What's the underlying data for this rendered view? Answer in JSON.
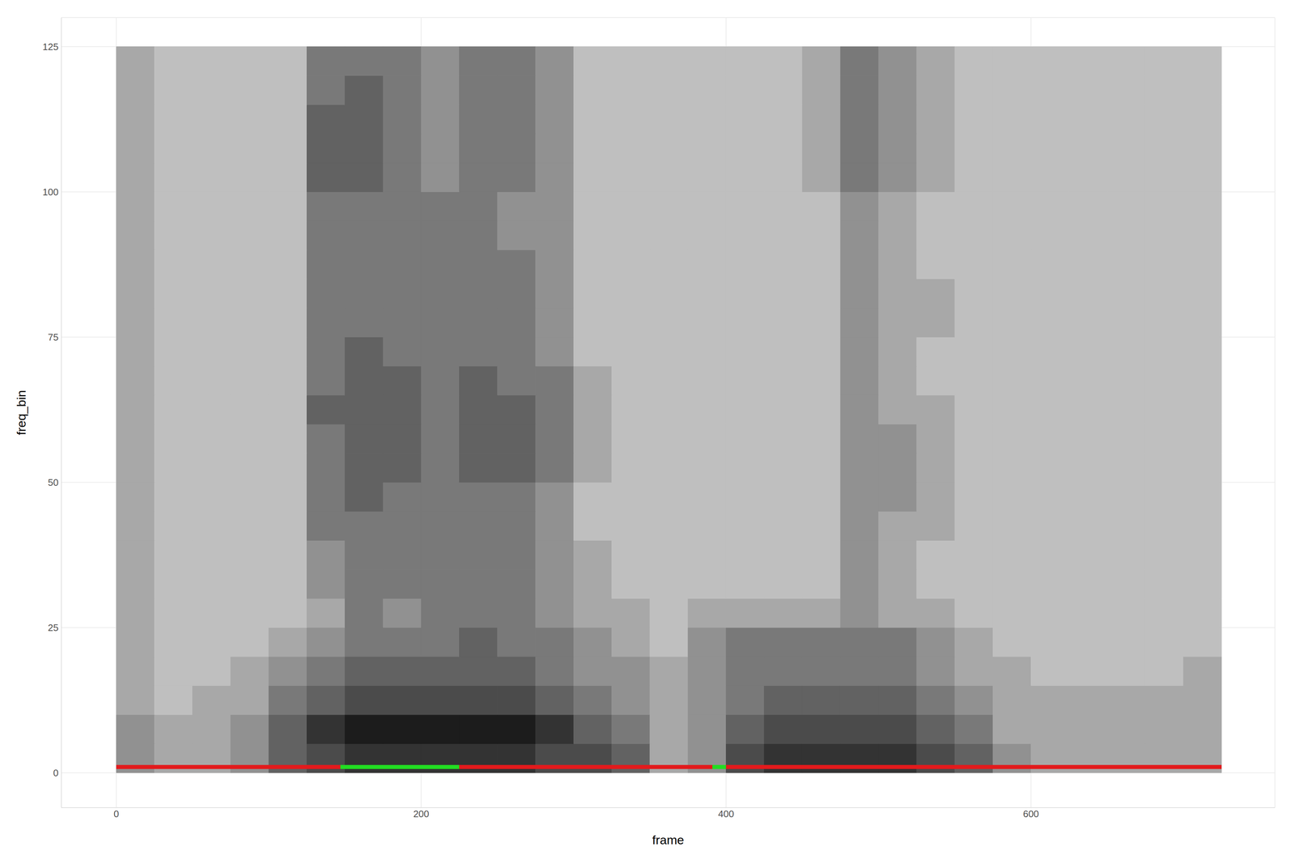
{
  "chart_data": {
    "type": "heatmap",
    "x_label": "frame",
    "y_label": "freq_bin",
    "xlim": [
      -36,
      760
    ],
    "ylim": [
      -6,
      130
    ],
    "xticks": [
      0,
      200,
      400,
      600
    ],
    "yticks": [
      0,
      25,
      50,
      75,
      100,
      125
    ],
    "grid": true,
    "cells": {
      "frame_edges": [
        0,
        25,
        50,
        75,
        100,
        125,
        150,
        175,
        200,
        225,
        250,
        275,
        300,
        325,
        350,
        375,
        400,
        425,
        450,
        475,
        500,
        525,
        550,
        575,
        600,
        625,
        650,
        675,
        700,
        725
      ],
      "bin_edges": [
        0,
        5,
        10,
        15,
        20,
        25,
        30,
        35,
        40,
        45,
        50,
        55,
        60,
        65,
        70,
        75,
        80,
        85,
        90,
        95,
        100,
        105,
        110,
        115,
        120,
        125
      ],
      "zlim": [
        0,
        9
      ],
      "values": [
        [
          4,
          3,
          3,
          4,
          6,
          7,
          8,
          8,
          8,
          8,
          8,
          7,
          7,
          6,
          3,
          4,
          7,
          8,
          8,
          8,
          8,
          7,
          6,
          4,
          3,
          3,
          3,
          3,
          3
        ],
        [
          4,
          3,
          3,
          4,
          6,
          8,
          9,
          9,
          9,
          9,
          9,
          8,
          6,
          5,
          3,
          4,
          6,
          7,
          7,
          7,
          7,
          6,
          5,
          3,
          3,
          3,
          3,
          3,
          3
        ],
        [
          3,
          2,
          3,
          3,
          5,
          6,
          7,
          7,
          7,
          7,
          7,
          6,
          5,
          4,
          3,
          4,
          5,
          6,
          6,
          6,
          6,
          5,
          4,
          3,
          3,
          3,
          3,
          3,
          3
        ],
        [
          3,
          2,
          2,
          3,
          4,
          5,
          6,
          6,
          6,
          6,
          6,
          5,
          4,
          4,
          3,
          4,
          5,
          5,
          5,
          5,
          5,
          4,
          3,
          3,
          2,
          2,
          2,
          2,
          3
        ],
        [
          3,
          2,
          2,
          2,
          3,
          4,
          5,
          5,
          5,
          6,
          5,
          5,
          4,
          3,
          2,
          4,
          5,
          5,
          5,
          5,
          5,
          4,
          3,
          2,
          2,
          2,
          2,
          2,
          2
        ],
        [
          3,
          2,
          2,
          2,
          2,
          3,
          5,
          4,
          5,
          5,
          5,
          4,
          3,
          3,
          2,
          3,
          3,
          3,
          3,
          4,
          3,
          3,
          2,
          2,
          2,
          2,
          2,
          2,
          2
        ],
        [
          3,
          2,
          2,
          2,
          2,
          4,
          5,
          5,
          5,
          5,
          5,
          4,
          3,
          2,
          2,
          2,
          2,
          2,
          2,
          4,
          3,
          2,
          2,
          2,
          2,
          2,
          2,
          2,
          2
        ],
        [
          3,
          2,
          2,
          2,
          2,
          4,
          5,
          5,
          5,
          5,
          5,
          4,
          3,
          2,
          2,
          2,
          2,
          2,
          2,
          4,
          3,
          2,
          2,
          2,
          2,
          2,
          2,
          2,
          2
        ],
        [
          3,
          2,
          2,
          2,
          2,
          5,
          5,
          5,
          5,
          5,
          5,
          4,
          2,
          2,
          2,
          2,
          2,
          2,
          2,
          4,
          3,
          3,
          2,
          2,
          2,
          2,
          2,
          2,
          2
        ],
        [
          3,
          2,
          2,
          2,
          2,
          5,
          6,
          5,
          5,
          5,
          5,
          4,
          2,
          2,
          2,
          2,
          2,
          2,
          2,
          4,
          4,
          3,
          2,
          2,
          2,
          2,
          2,
          2,
          2
        ],
        [
          3,
          2,
          2,
          2,
          2,
          5,
          6,
          6,
          5,
          6,
          6,
          5,
          3,
          2,
          2,
          2,
          2,
          2,
          2,
          4,
          4,
          3,
          2,
          2,
          2,
          2,
          2,
          2,
          2
        ],
        [
          3,
          2,
          2,
          2,
          2,
          5,
          6,
          6,
          5,
          6,
          6,
          5,
          3,
          2,
          2,
          2,
          2,
          2,
          2,
          4,
          4,
          3,
          2,
          2,
          2,
          2,
          2,
          2,
          2
        ],
        [
          3,
          2,
          2,
          2,
          2,
          6,
          6,
          6,
          5,
          6,
          6,
          5,
          3,
          2,
          2,
          2,
          2,
          2,
          2,
          4,
          3,
          3,
          2,
          2,
          2,
          2,
          2,
          2,
          2
        ],
        [
          3,
          2,
          2,
          2,
          2,
          5,
          6,
          6,
          5,
          6,
          5,
          5,
          3,
          2,
          2,
          2,
          2,
          2,
          2,
          4,
          3,
          2,
          2,
          2,
          2,
          2,
          2,
          2,
          2
        ],
        [
          3,
          2,
          2,
          2,
          2,
          5,
          6,
          5,
          5,
          5,
          5,
          4,
          2,
          2,
          2,
          2,
          2,
          2,
          2,
          4,
          3,
          2,
          2,
          2,
          2,
          2,
          2,
          2,
          2
        ],
        [
          3,
          2,
          2,
          2,
          2,
          5,
          5,
          5,
          5,
          5,
          5,
          4,
          2,
          2,
          2,
          2,
          2,
          2,
          2,
          4,
          3,
          3,
          2,
          2,
          2,
          2,
          2,
          2,
          2
        ],
        [
          3,
          2,
          2,
          2,
          2,
          5,
          5,
          5,
          5,
          5,
          5,
          4,
          2,
          2,
          2,
          2,
          2,
          2,
          2,
          4,
          3,
          3,
          2,
          2,
          2,
          2,
          2,
          2,
          2
        ],
        [
          3,
          2,
          2,
          2,
          2,
          5,
          5,
          5,
          5,
          5,
          5,
          4,
          2,
          2,
          2,
          2,
          2,
          2,
          2,
          4,
          3,
          2,
          2,
          2,
          2,
          2,
          2,
          2,
          2
        ],
        [
          3,
          2,
          2,
          2,
          2,
          5,
          5,
          5,
          5,
          5,
          4,
          4,
          2,
          2,
          2,
          2,
          2,
          2,
          2,
          4,
          3,
          2,
          2,
          2,
          2,
          2,
          2,
          2,
          2
        ],
        [
          3,
          2,
          2,
          2,
          2,
          5,
          5,
          5,
          5,
          5,
          4,
          4,
          2,
          2,
          2,
          2,
          2,
          2,
          2,
          4,
          3,
          2,
          2,
          2,
          2,
          2,
          2,
          2,
          2
        ],
        [
          3,
          2,
          2,
          2,
          2,
          6,
          6,
          5,
          4,
          5,
          5,
          4,
          2,
          2,
          2,
          2,
          2,
          2,
          3,
          5,
          4,
          3,
          2,
          2,
          2,
          2,
          2,
          2,
          2
        ],
        [
          3,
          2,
          2,
          2,
          2,
          6,
          6,
          5,
          4,
          5,
          5,
          4,
          2,
          2,
          2,
          2,
          2,
          2,
          3,
          5,
          4,
          3,
          2,
          2,
          2,
          2,
          2,
          2,
          2
        ],
        [
          3,
          2,
          2,
          2,
          2,
          6,
          6,
          5,
          4,
          5,
          5,
          4,
          2,
          2,
          2,
          2,
          2,
          2,
          3,
          5,
          4,
          3,
          2,
          2,
          2,
          2,
          2,
          2,
          2
        ],
        [
          3,
          2,
          2,
          2,
          2,
          5,
          6,
          5,
          4,
          5,
          5,
          4,
          2,
          2,
          2,
          2,
          2,
          2,
          3,
          5,
          4,
          3,
          2,
          2,
          2,
          2,
          2,
          2,
          2
        ],
        [
          3,
          2,
          2,
          2,
          2,
          5,
          5,
          5,
          4,
          5,
          5,
          4,
          2,
          2,
          2,
          2,
          2,
          2,
          3,
          5,
          4,
          3,
          2,
          2,
          2,
          2,
          2,
          2,
          2
        ]
      ]
    },
    "voicing": {
      "y": 1,
      "segments": [
        {
          "start": 0,
          "end": 147,
          "color": "#e31a1c"
        },
        {
          "start": 147,
          "end": 225,
          "color": "#22dd22"
        },
        {
          "start": 225,
          "end": 391,
          "color": "#e31a1c"
        },
        {
          "start": 391,
          "end": 400,
          "color": "#22dd22"
        },
        {
          "start": 400,
          "end": 725,
          "color": "#e31a1c"
        }
      ]
    }
  }
}
